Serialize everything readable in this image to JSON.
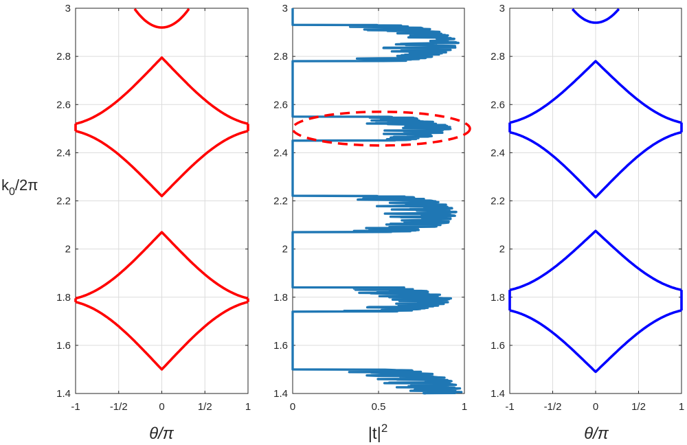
{
  "chart_data": [
    {
      "type": "line",
      "panel": "left",
      "xlabel": "θ/π",
      "ylabel": "k0/2π",
      "xlim": [
        -1,
        1
      ],
      "ylim": [
        1.4,
        3.0
      ],
      "xticks": [
        -1,
        -0.5,
        0,
        0.5,
        1
      ],
      "xtick_labels": [
        "-1",
        "-1/2",
        "0",
        "1/2",
        "1"
      ],
      "yticks": [
        1.4,
        1.6,
        1.8,
        2.0,
        2.2,
        2.4,
        2.6,
        2.8,
        3.0
      ],
      "ytick_labels": [
        "1.4",
        "1.6",
        "1.8",
        "2",
        "2.2",
        "2.4",
        "2.6",
        "2.8",
        "3"
      ],
      "grid": true,
      "color": "#ff0000",
      "bands": [
        {
          "center": 0,
          "edge": 1.5,
          "shape": "U"
        },
        {
          "center": 0,
          "edge": 2.07,
          "shape": "cap"
        },
        {
          "center": 0,
          "edge": 2.22,
          "shape": "U"
        },
        {
          "center": 0,
          "edge": 2.795,
          "shape": "cap"
        },
        {
          "center": 0,
          "edge": 2.92,
          "shape": "U"
        }
      ],
      "edge_gaps": [
        [
          1.78,
          1.795
        ],
        [
          2.49,
          2.52
        ]
      ]
    },
    {
      "type": "line",
      "panel": "middle",
      "xlabel": "|t|2",
      "xlim": [
        0,
        1
      ],
      "ylim": [
        1.4,
        3.0
      ],
      "xticks": [
        0,
        0.5,
        1
      ],
      "xtick_labels": [
        "0",
        "0.5",
        "1"
      ],
      "yticks": [
        1.4,
        1.6,
        1.8,
        2.0,
        2.2,
        2.4,
        2.6,
        2.8,
        3.0
      ],
      "ytick_labels": [
        "1.4",
        "1.6",
        "1.8",
        "2",
        "2.2",
        "2.4",
        "2.6",
        "2.8",
        "3"
      ],
      "grid": true,
      "color": "#1f77b4",
      "zero_bands": [
        [
          1.5,
          1.74
        ],
        [
          1.84,
          2.07
        ],
        [
          2.22,
          2.45
        ],
        [
          2.55,
          2.78
        ],
        [
          2.93,
          3.0
        ]
      ],
      "annotation": {
        "shape": "dashed-ellipse",
        "color": "#ff0000",
        "y_center": 2.5,
        "y_range": [
          2.43,
          2.57
        ]
      }
    },
    {
      "type": "line",
      "panel": "right",
      "xlabel": "θ/π",
      "xlim": [
        -1,
        1
      ],
      "ylim": [
        1.4,
        3.0
      ],
      "xticks": [
        -1,
        -0.5,
        0,
        0.5,
        1
      ],
      "xtick_labels": [
        "-1",
        "-1/2",
        "0",
        "1/2",
        "1"
      ],
      "yticks": [
        1.4,
        1.6,
        1.8,
        2.0,
        2.2,
        2.4,
        2.6,
        2.8,
        3.0
      ],
      "ytick_labels": [
        "1.4",
        "1.6",
        "1.8",
        "2",
        "2.2",
        "2.4",
        "2.6",
        "2.8",
        "3"
      ],
      "grid": true,
      "color": "#0000ff",
      "bands": [
        {
          "center": 0,
          "edge": 1.49,
          "shape": "U"
        },
        {
          "center": 0,
          "edge": 2.075,
          "shape": "cap"
        },
        {
          "center": 0,
          "edge": 2.215,
          "shape": "U"
        },
        {
          "center": 0,
          "edge": 2.78,
          "shape": "cap"
        },
        {
          "center": 0,
          "edge": 2.94,
          "shape": "U"
        }
      ],
      "edge_gaps": [
        [
          1.745,
          1.83
        ],
        [
          2.485,
          2.525
        ]
      ]
    }
  ],
  "labels": {
    "ylabel_main": "k",
    "ylabel_sub": "0",
    "ylabel_rest": "/2π",
    "xlabel_left": "θ/π",
    "xlabel_right": "θ/π",
    "xlabel_mid_main": "|t|",
    "xlabel_mid_sup": "2"
  }
}
